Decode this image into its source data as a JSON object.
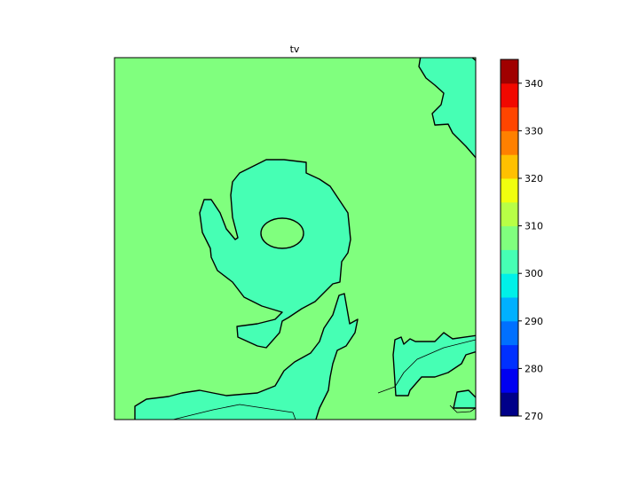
{
  "chart_data": {
    "type": "contourf",
    "title": "tv",
    "levels": [
      270,
      275,
      280,
      285,
      290,
      295,
      300,
      305,
      310,
      315,
      320,
      325,
      330,
      335,
      340,
      345
    ],
    "colors": [
      "#000089",
      "#0000f1",
      "#0030ff",
      "#0070ff",
      "#00b0ff",
      "#00f0e8",
      "#46ffb4",
      "#80ff7e",
      "#b8ff46",
      "#f0ff0e",
      "#ffc000",
      "#ff8000",
      "#ff4500",
      "#f10800",
      "#a00000"
    ],
    "colorbar": {
      "ticks": [
        270,
        280,
        290,
        300,
        310,
        320,
        330,
        340
      ],
      "range": [
        270,
        345
      ],
      "placement": "right"
    },
    "field_bands_present": [
      "300-305",
      "305-310"
    ],
    "background_band": "305-310"
  }
}
